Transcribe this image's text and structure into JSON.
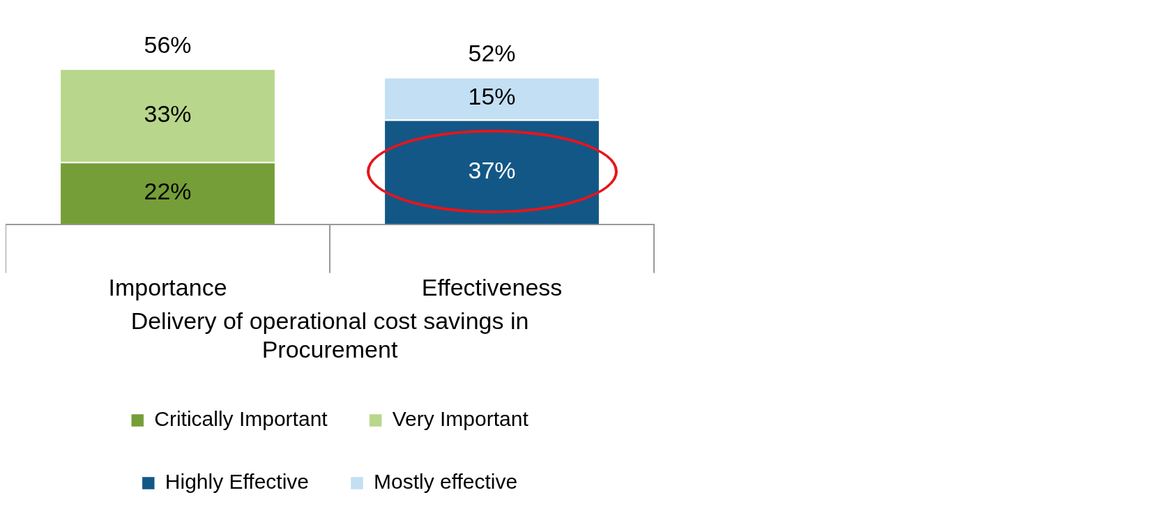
{
  "chart_data": {
    "type": "bar",
    "stacked": true,
    "xlabel": "Delivery of operational cost savings in Procurement",
    "categories": [
      "Importance",
      "Effectiveness"
    ],
    "legend": "bottom",
    "grid": false,
    "series": [
      {
        "name": "Critically Important",
        "color": "#759e38",
        "values": [
          22,
          null
        ],
        "value_labels": [
          "22%",
          null
        ]
      },
      {
        "name": "Very Important",
        "color": "#b8d68c",
        "values": [
          33,
          null
        ],
        "value_labels": [
          "33%",
          null
        ]
      },
      {
        "name": "Highly Effective",
        "color": "#135786",
        "values": [
          null,
          37
        ],
        "value_labels": [
          null,
          "37%"
        ]
      },
      {
        "name": "Mostly effective",
        "color": "#c3dff3",
        "values": [
          null,
          15
        ],
        "value_labels": [
          null,
          "15%"
        ]
      }
    ],
    "totals": [
      "56%",
      "52%"
    ]
  }
}
